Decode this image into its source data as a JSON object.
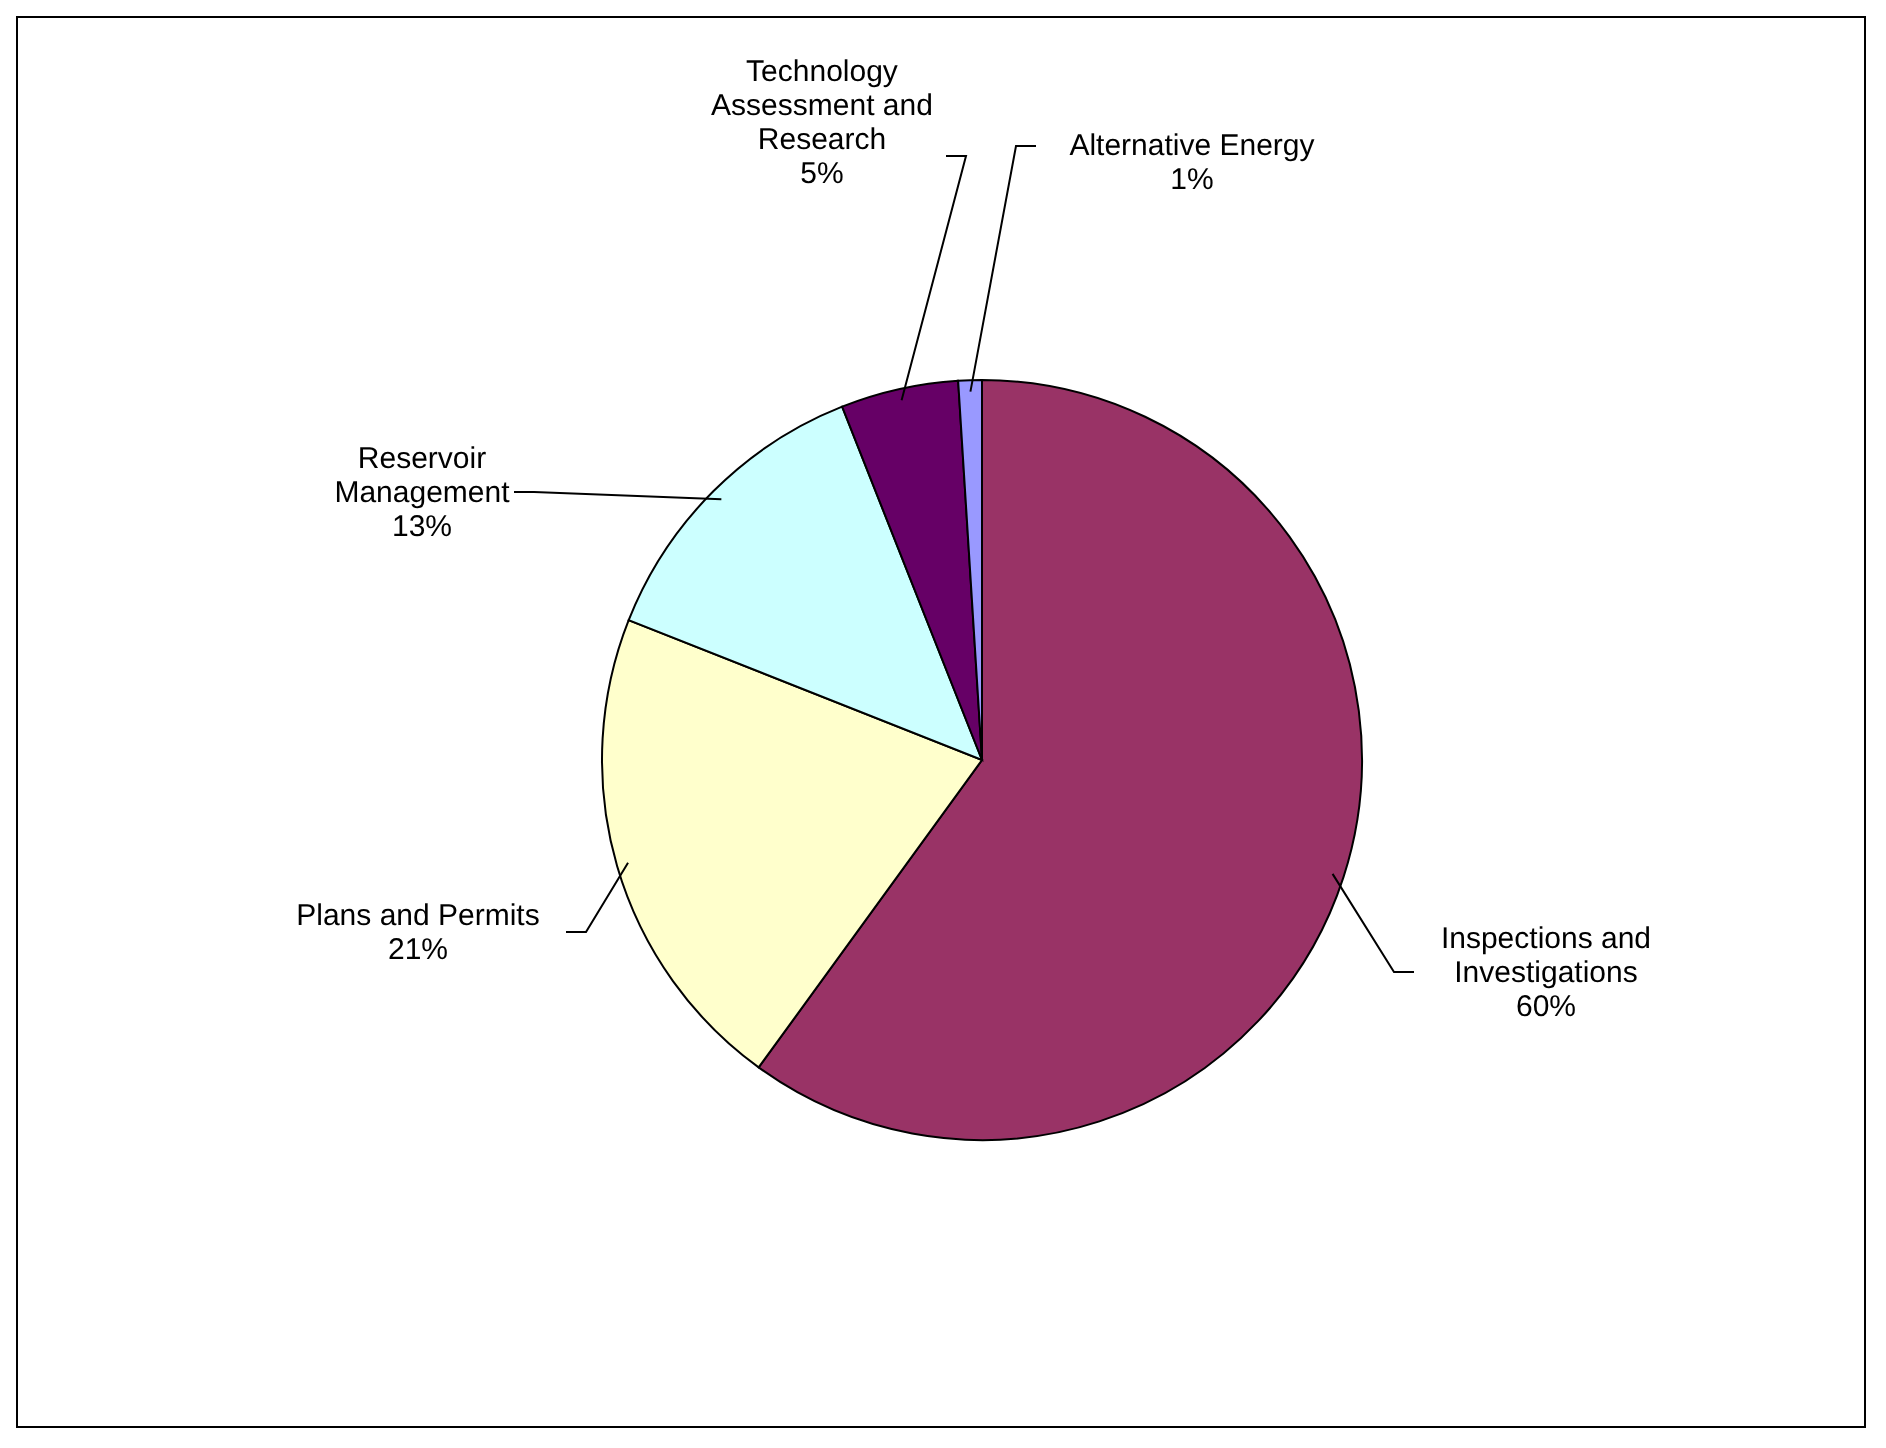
{
  "chart_data": {
    "type": "pie",
    "categories": [
      "Inspections and Investigations",
      "Plans and Permits",
      "Reservoir Management",
      "Technology Assessment and Research",
      "Alternative Energy"
    ],
    "values": [
      60,
      21,
      13,
      5,
      1
    ],
    "value_labels": [
      "60%",
      "21%",
      "13%",
      "5%",
      "1%"
    ],
    "colors": [
      "#993366",
      "#ffffcc",
      "#ccffff",
      "#660066",
      "#9999ff"
    ],
    "legend": false
  }
}
